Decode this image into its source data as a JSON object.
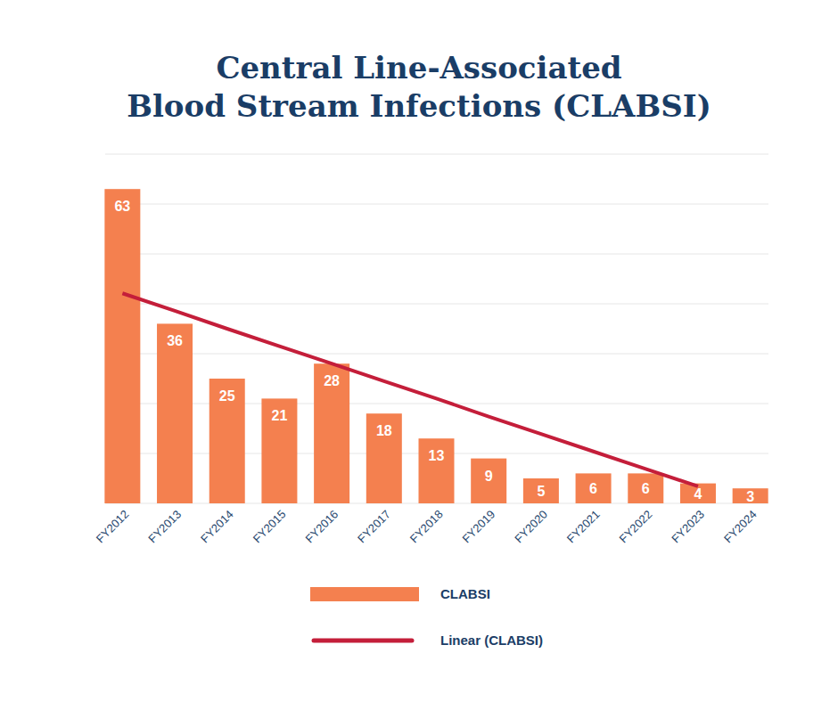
{
  "chart_data": {
    "type": "bar",
    "title": "Central Line-Associated\nBlood Stream Infections (CLABSI)",
    "categories": [
      "FY2012",
      "FY2013",
      "FY2014",
      "FY2015",
      "FY2016",
      "FY2017",
      "FY2018",
      "FY2019",
      "FY2020",
      "FY2021",
      "FY2022",
      "FY2023",
      "FY2024"
    ],
    "series": [
      {
        "name": "CLABSI",
        "type": "bar",
        "color": "#f4804f",
        "values": [
          63,
          36,
          25,
          21,
          28,
          18,
          13,
          9,
          5,
          6,
          6,
          4,
          3
        ]
      },
      {
        "name": "Linear (CLABSI)",
        "type": "line",
        "color": "#c41e3a",
        "values": [
          42.1,
          38.6,
          35.0,
          31.5,
          28.0,
          24.5,
          21.0,
          17.4,
          13.9,
          10.4,
          6.9,
          3.4,
          null
        ]
      }
    ],
    "ylim": [
      0,
      70
    ],
    "yticks": [
      0,
      10,
      20,
      30,
      40,
      50,
      60,
      70
    ],
    "grid": true,
    "tick_labels": "x",
    "data_labels": true,
    "legend": "bottom"
  }
}
